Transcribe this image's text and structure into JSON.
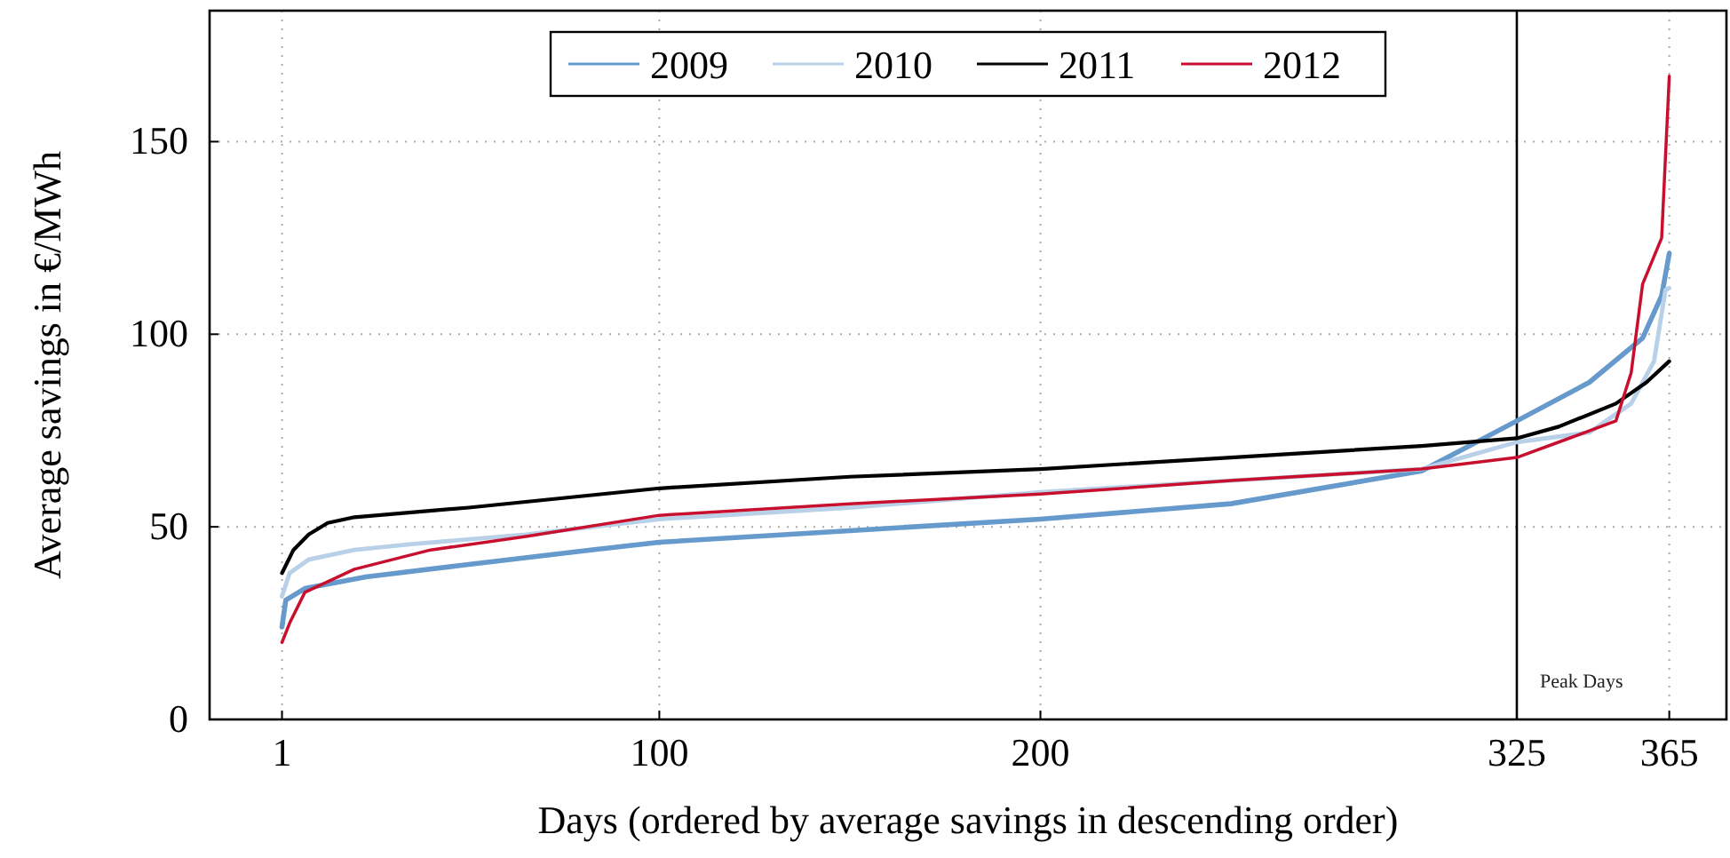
{
  "chart_data": {
    "type": "line",
    "xlabel": "Days (ordered by average savings in descending order)",
    "ylabel": "Average savings in €/MWh",
    "xlim": [
      -18,
      380
    ],
    "xticks": [
      1,
      100,
      200,
      325,
      365
    ],
    "ylim": [
      0,
      184
    ],
    "yticks": [
      0,
      50,
      100,
      150
    ],
    "grid": true,
    "legend": "top",
    "marker": "none",
    "line_style": "solid",
    "ref_lines": [
      {
        "axis": "x",
        "value": 325,
        "label": "Peak Days",
        "color": "#000000"
      }
    ],
    "series": [
      {
        "name": "2009",
        "color": "#6699cc",
        "x": [
          1,
          2,
          7,
          23,
          48,
          82,
          100,
          150,
          200,
          250,
          300,
          325,
          344,
          358,
          363,
          365
        ],
        "values": [
          24,
          31,
          34,
          37,
          40,
          44,
          46,
          49,
          52,
          56,
          64.5,
          77.5,
          87.5,
          99,
          110,
          121
        ]
      },
      {
        "name": "2010",
        "color": "#b8d0e8",
        "x": [
          1,
          3,
          8,
          20,
          35,
          65,
          100,
          150,
          200,
          250,
          300,
          325,
          344,
          355,
          361,
          364,
          365
        ],
        "values": [
          32,
          38,
          41.5,
          44,
          45.5,
          48,
          52,
          55,
          59,
          62,
          65,
          72,
          74.5,
          82,
          93,
          111.5,
          112
        ]
      },
      {
        "name": "2011",
        "color": "#000000",
        "x": [
          1,
          4,
          8,
          13,
          20,
          50,
          100,
          150,
          200,
          250,
          300,
          325,
          336,
          351,
          359,
          365
        ],
        "values": [
          38,
          44,
          48,
          51,
          52.5,
          55,
          60,
          63,
          65,
          68,
          71,
          73,
          76,
          82,
          87.5,
          93
        ]
      },
      {
        "name": "2012",
        "color": "#c8102e",
        "x": [
          1,
          3,
          7,
          20,
          40,
          65,
          100,
          150,
          200,
          250,
          300,
          325,
          336,
          351,
          355,
          358,
          363,
          365
        ],
        "values": [
          20,
          25,
          33,
          39,
          44,
          47.5,
          53,
          56,
          58.5,
          62,
          65,
          68,
          72,
          77.5,
          90,
          113,
          125,
          167
        ]
      }
    ]
  }
}
